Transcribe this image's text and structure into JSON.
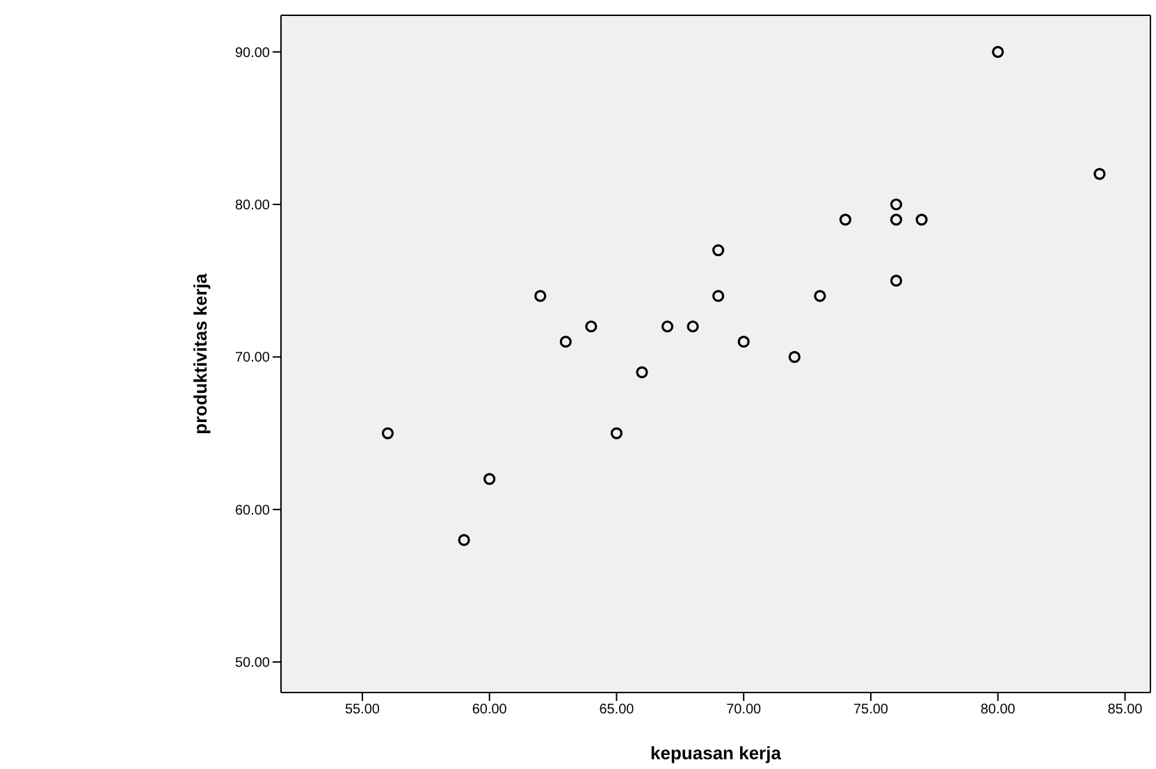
{
  "chart_data": {
    "type": "scatter",
    "xlabel": "kepuasan kerja",
    "ylabel": "produktivitas kerja",
    "x": [
      56,
      59,
      60,
      62,
      63,
      64,
      65,
      66,
      67,
      68,
      69,
      69,
      70,
      72,
      73,
      74,
      76,
      76,
      76,
      77,
      80,
      84
    ],
    "series": [
      {
        "color": "#000000",
        "values": [
          65,
          58,
          62,
          74,
          71,
          72,
          65,
          69,
          72,
          72,
          77,
          74,
          71,
          70,
          74,
          79,
          80,
          79,
          75,
          79,
          90,
          82
        ]
      }
    ],
    "xlim": [
      51.8,
      86
    ],
    "ylim": [
      48,
      92.4
    ],
    "xticks": [
      {
        "value": 55,
        "label": "55.00"
      },
      {
        "value": 60,
        "label": "60.00"
      },
      {
        "value": 65,
        "label": "65.00"
      },
      {
        "value": 70,
        "label": "70.00"
      },
      {
        "value": 75,
        "label": "75.00"
      },
      {
        "value": 80,
        "label": "80.00"
      },
      {
        "value": 85,
        "label": "85.00"
      }
    ],
    "yticks": [
      {
        "value": 50,
        "label": "50.00"
      },
      {
        "value": 60,
        "label": "60.00"
      },
      {
        "value": 70,
        "label": "70.00"
      },
      {
        "value": 80,
        "label": "80.00"
      },
      {
        "value": 90,
        "label": "90.00"
      }
    ],
    "marker": "circle",
    "legend": false
  }
}
